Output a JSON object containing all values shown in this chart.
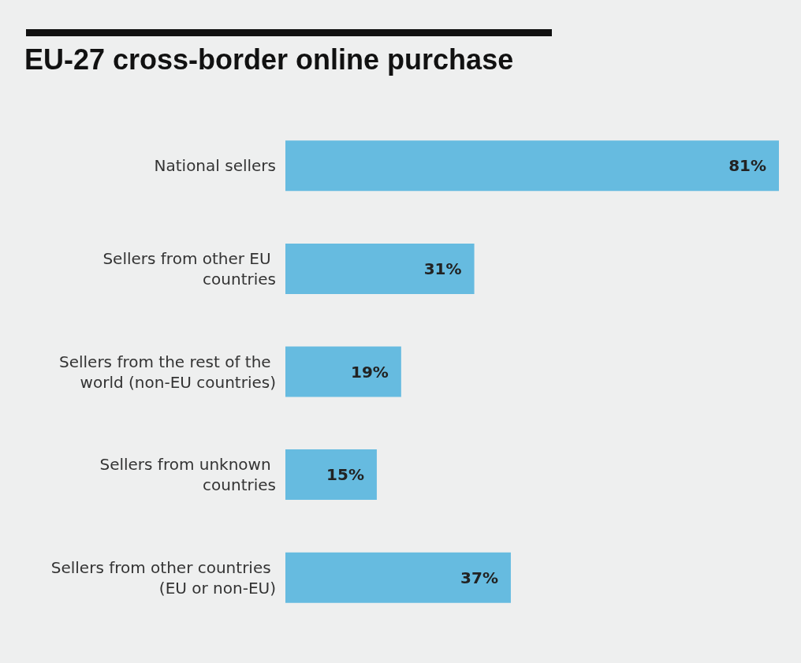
{
  "chart_data": {
    "type": "bar",
    "title": "EU-27 cross-border online purchase",
    "orientation": "horizontal",
    "categories": [
      "National sellers",
      "Sellers from other EU countries",
      "Sellers from the rest of the world (non-EU countries)",
      "Sellers from unknown countries",
      "Sellers from other countries (EU or non-EU)"
    ],
    "values": [
      81,
      31,
      19,
      15,
      37
    ],
    "value_labels": [
      "81%",
      "31%",
      "19%",
      "15%",
      "37%"
    ],
    "color": "#66bbe0"
  }
}
